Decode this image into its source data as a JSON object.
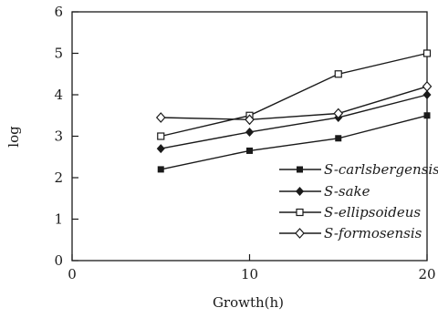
{
  "chart_data": {
    "type": "line",
    "title": "",
    "xlabel": "Growth(h)",
    "ylabel": "log",
    "xlim": [
      0,
      20
    ],
    "ylim": [
      0,
      6
    ],
    "x_ticks": [
      "0",
      "10",
      "20"
    ],
    "y_ticks": [
      "0",
      "1",
      "2",
      "3",
      "4",
      "5",
      "6"
    ],
    "grid": false,
    "legend_position": "right",
    "series": [
      {
        "name": "S-carlsbergensis",
        "marker": "filled-square",
        "x": [
          5,
          10,
          15,
          20
        ],
        "y": [
          2.2,
          2.65,
          2.95,
          3.5
        ]
      },
      {
        "name": "S-sake",
        "marker": "filled-diamond",
        "x": [
          5,
          10,
          15,
          20
        ],
        "y": [
          2.7,
          3.1,
          3.45,
          4.0
        ]
      },
      {
        "name": "S-ellipsoideus",
        "marker": "open-square",
        "x": [
          5,
          10,
          15,
          20
        ],
        "y": [
          3.0,
          3.5,
          4.5,
          5.0
        ]
      },
      {
        "name": "S-formosensis",
        "marker": "open-diamond",
        "x": [
          5,
          10,
          15,
          20
        ],
        "y": [
          3.45,
          3.4,
          3.55,
          4.2
        ]
      }
    ],
    "colors": {
      "ink": "#1a1a1a",
      "background": "#ffffff"
    }
  }
}
